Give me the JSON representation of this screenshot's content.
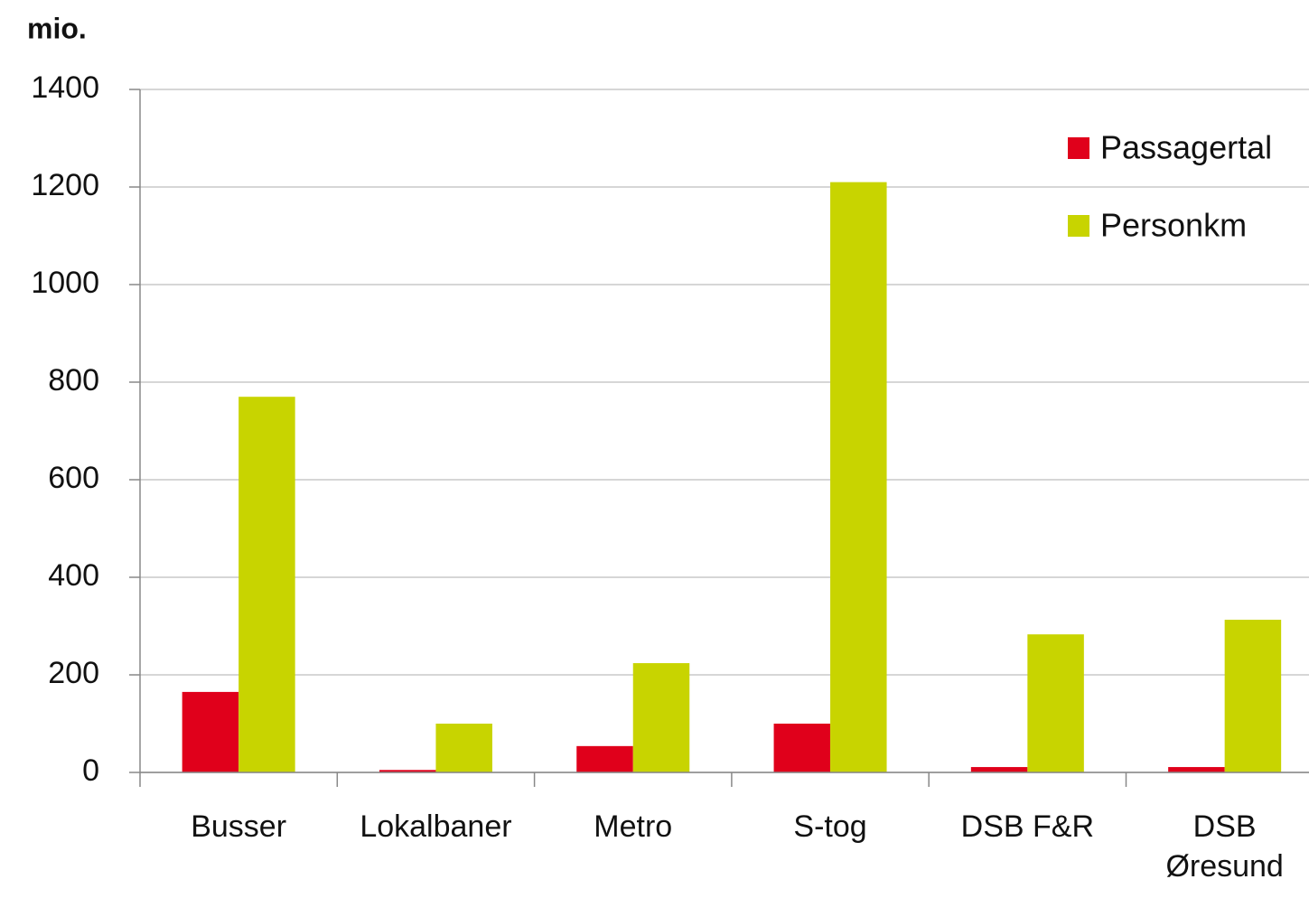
{
  "chart_data": {
    "type": "bar",
    "y_label": "mio.",
    "categories": [
      "Busser",
      "Lokalbaner",
      "Metro",
      "S-tog",
      "DSB F&R",
      "DSB Øresund"
    ],
    "series": [
      {
        "name": "Passagertal",
        "color": "#e0001b",
        "values": [
          165,
          5,
          54,
          100,
          11,
          11
        ]
      },
      {
        "name": "Personkm",
        "color": "#c8d400",
        "values": [
          770,
          100,
          224,
          1210,
          283,
          313
        ]
      }
    ],
    "ylim": [
      0,
      1400
    ],
    "yticks": [
      0,
      200,
      400,
      600,
      800,
      1000,
      1200,
      1400
    ],
    "grid": true,
    "legend": "top-right"
  }
}
